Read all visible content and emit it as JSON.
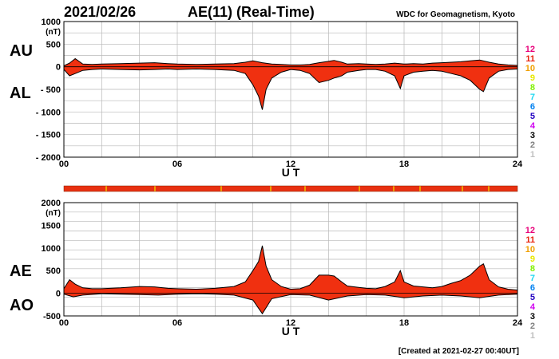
{
  "header": {
    "date": "2021/02/26",
    "title": "AE(11) (Real-Time)",
    "source": "WDC for Geomagnetism, Kyoto"
  },
  "footer": {
    "created": "[Created at 2021-02-27 00:40UT]"
  },
  "side_labels": {
    "au": "AU",
    "al": "AL",
    "ae": "AE",
    "ao": "AO"
  },
  "legend": {
    "items": [
      {
        "label": "12",
        "color": "#e8007a"
      },
      {
        "label": "11",
        "color": "#e8220c"
      },
      {
        "label": "10",
        "color": "#f0a000"
      },
      {
        "label": "9",
        "color": "#e8e800"
      },
      {
        "label": "8",
        "color": "#80f000"
      },
      {
        "label": "7",
        "color": "#20d8f0"
      },
      {
        "label": "6",
        "color": "#0080f0"
      },
      {
        "label": "5",
        "color": "#2000c0"
      },
      {
        "label": "4",
        "color": "#d000f0"
      },
      {
        "label": "3",
        "color": "#000000"
      },
      {
        "label": "2",
        "color": "#808080"
      },
      {
        "label": "1",
        "color": "#c0c0c0"
      }
    ]
  },
  "chart_data": [
    {
      "type": "area",
      "name": "AU/AL",
      "xlabel": "U T",
      "ylabel": "(nT)",
      "xlim": [
        0,
        24
      ],
      "ylim": [
        -2000,
        1000
      ],
      "x_ticks": [
        "00",
        "06",
        "12",
        "18",
        "24"
      ],
      "y_ticks": [
        "1000",
        "500",
        "0",
        "- 500",
        "- 1000",
        "- 1500",
        "- 2000"
      ],
      "y_tick_values": [
        1000,
        500,
        0,
        -500,
        -1000,
        -1500,
        -2000
      ],
      "grid": true,
      "fill_color": "#f03010",
      "series": [
        {
          "role": "upper",
          "x": [
            0,
            0.3,
            0.6,
            1.0,
            1.5,
            2.0,
            3.0,
            4.0,
            4.8,
            5.5,
            6.0,
            7.0,
            8.0,
            9.0,
            9.6,
            10.0,
            10.5,
            11.0,
            11.5,
            12.0,
            12.5,
            13.0,
            13.5,
            14.0,
            14.3,
            14.7,
            15.0,
            15.6,
            16.0,
            16.5,
            17.0,
            17.5,
            18.0,
            18.5,
            19.0,
            19.5,
            20.0,
            20.5,
            21.0,
            21.5,
            22.0,
            22.5,
            23.0,
            23.5,
            24.0
          ],
          "values": [
            20,
            80,
            180,
            60,
            50,
            60,
            70,
            80,
            90,
            70,
            60,
            50,
            60,
            70,
            100,
            130,
            90,
            60,
            50,
            40,
            40,
            50,
            90,
            120,
            140,
            100,
            60,
            70,
            60,
            50,
            60,
            80,
            60,
            70,
            60,
            80,
            90,
            100,
            110,
            130,
            150,
            100,
            60,
            40,
            30
          ]
        },
        {
          "role": "lower",
          "x": [
            0,
            0.3,
            0.6,
            1.0,
            1.5,
            2.0,
            3.0,
            4.0,
            4.8,
            5.5,
            6.0,
            7.0,
            8.0,
            9.0,
            9.6,
            10.0,
            10.3,
            10.5,
            10.7,
            11.0,
            11.5,
            12.0,
            12.5,
            13.0,
            13.5,
            14.0,
            14.3,
            14.7,
            15.0,
            15.6,
            16.0,
            16.5,
            17.0,
            17.5,
            17.8,
            18.0,
            18.5,
            19.0,
            19.5,
            20.0,
            20.5,
            21.0,
            21.5,
            22.0,
            22.2,
            22.5,
            23.0,
            23.5,
            24.0
          ],
          "values": [
            -60,
            -200,
            -150,
            -80,
            -60,
            -50,
            -60,
            -70,
            -60,
            -50,
            -60,
            -50,
            -60,
            -80,
            -150,
            -400,
            -650,
            -950,
            -500,
            -250,
            -120,
            -60,
            -80,
            -150,
            -350,
            -300,
            -250,
            -200,
            -120,
            -80,
            -60,
            -60,
            -100,
            -200,
            -480,
            -200,
            -120,
            -100,
            -80,
            -100,
            -150,
            -200,
            -300,
            -500,
            -550,
            -250,
            -100,
            -60,
            -50
          ]
        }
      ]
    },
    {
      "type": "area",
      "name": "AE/AO",
      "xlabel": "U T",
      "ylabel": "(nT)",
      "xlim": [
        0,
        24
      ],
      "ylim": [
        -500,
        2000
      ],
      "x_ticks": [
        "00",
        "06",
        "12",
        "18",
        "24"
      ],
      "y_ticks": [
        "2000",
        "1500",
        "1000",
        "500",
        "0",
        "-500"
      ],
      "y_tick_values": [
        2000,
        1500,
        1000,
        500,
        0,
        -500
      ],
      "grid": true,
      "fill_color": "#f03010",
      "series": [
        {
          "role": "upper",
          "x": [
            0,
            0.3,
            0.6,
            1.0,
            1.5,
            2.0,
            3.0,
            4.0,
            4.8,
            5.5,
            6.0,
            7.0,
            8.0,
            9.0,
            9.6,
            10.0,
            10.3,
            10.5,
            10.7,
            11.0,
            11.5,
            12.0,
            12.5,
            13.0,
            13.5,
            14.0,
            14.3,
            14.7,
            15.0,
            15.6,
            16.0,
            16.5,
            17.0,
            17.5,
            17.8,
            18.0,
            18.5,
            19.0,
            19.5,
            20.0,
            20.5,
            21.0,
            21.5,
            22.0,
            22.2,
            22.5,
            23.0,
            23.5,
            24.0
          ],
          "values": [
            100,
            300,
            200,
            120,
            100,
            100,
            120,
            150,
            140,
            110,
            100,
            90,
            110,
            150,
            250,
            500,
            700,
            1050,
            600,
            300,
            150,
            90,
            100,
            180,
            400,
            400,
            380,
            250,
            160,
            130,
            110,
            100,
            150,
            250,
            500,
            250,
            160,
            140,
            120,
            150,
            220,
            280,
            400,
            600,
            650,
            300,
            140,
            90,
            70
          ]
        },
        {
          "role": "lower",
          "x": [
            0,
            0.5,
            1.0,
            2.0,
            3.0,
            4.0,
            5.0,
            6.0,
            7.0,
            8.0,
            9.0,
            10.0,
            10.5,
            11.0,
            12.0,
            13.0,
            14.0,
            15.0,
            16.0,
            17.0,
            18.0,
            19.0,
            20.0,
            21.0,
            22.0,
            23.0,
            24.0
          ],
          "values": [
            -20,
            -80,
            -40,
            -10,
            -20,
            -30,
            -40,
            -20,
            -10,
            -20,
            -40,
            -150,
            -450,
            -120,
            -30,
            -40,
            -150,
            -60,
            -30,
            -40,
            -100,
            -60,
            -40,
            -60,
            -100,
            -40,
            -20
          ]
        }
      ]
    }
  ]
}
